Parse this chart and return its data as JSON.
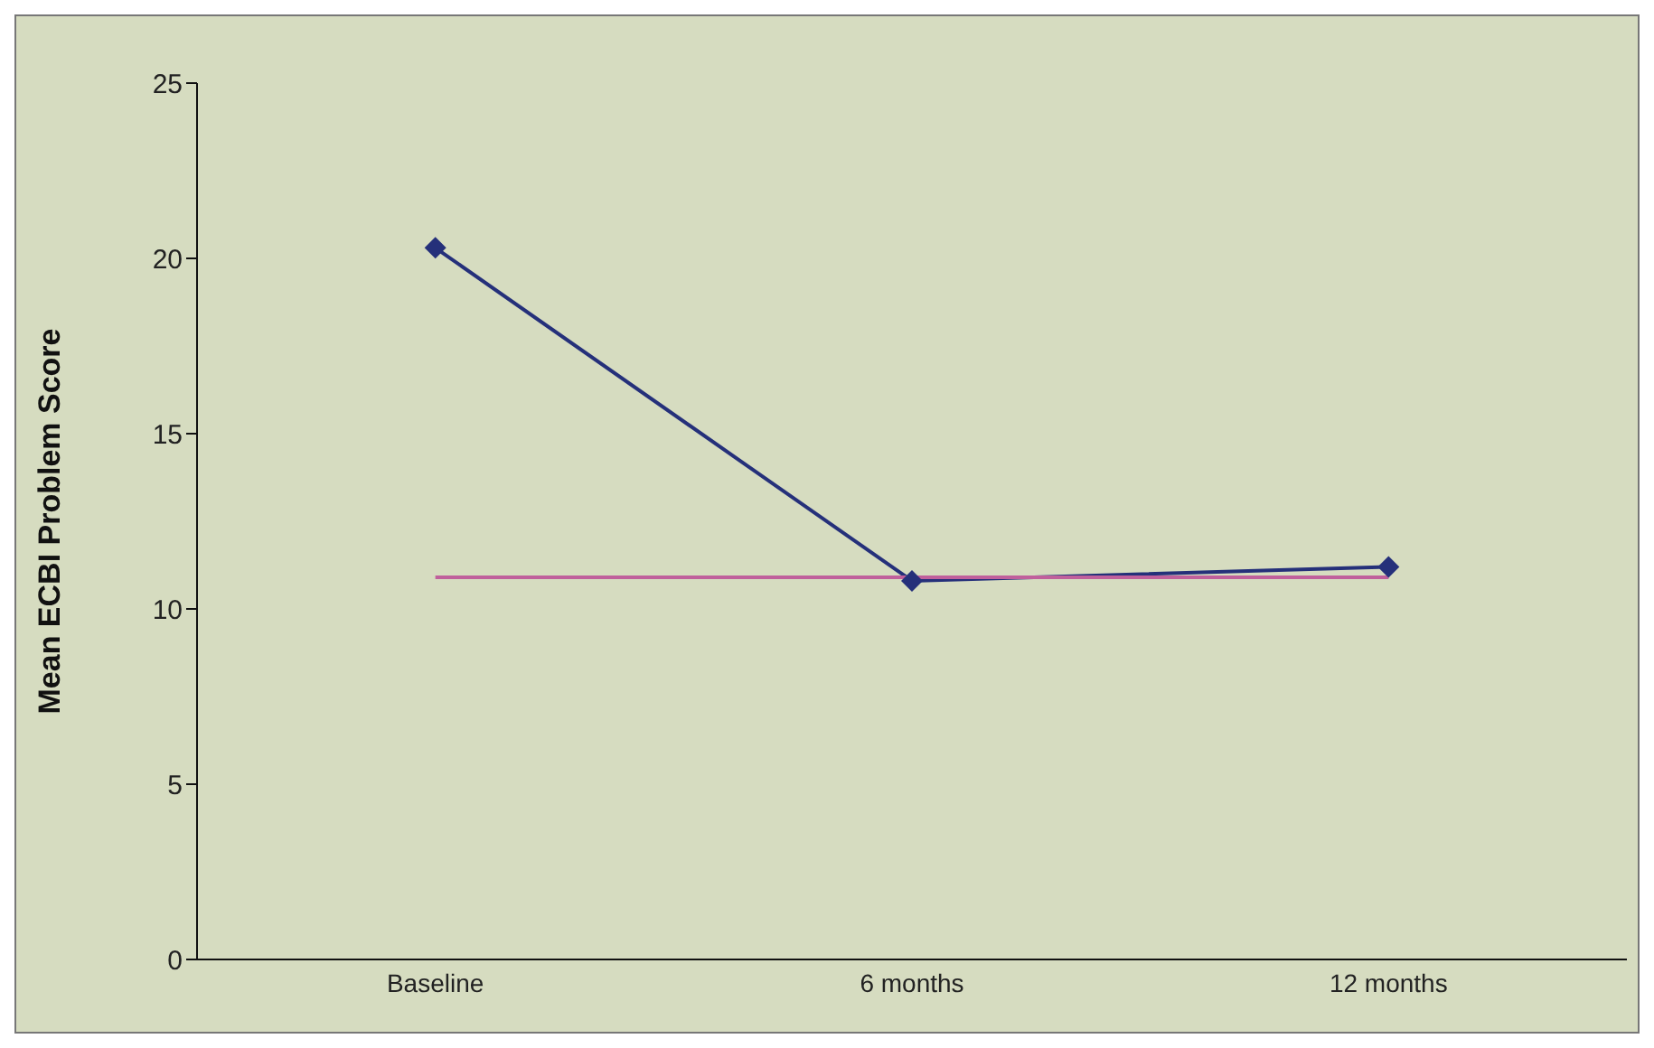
{
  "chart_data": {
    "type": "line",
    "ylabel": "Mean ECBI Problem Score",
    "categories": [
      "Baseline",
      "6 months",
      "12 months"
    ],
    "series": [
      {
        "color": "#25307a",
        "values": [
          20.3,
          10.8,
          11.2
        ],
        "marker": "diamond"
      },
      {
        "color": "#c0609c",
        "values": [
          10.9,
          10.9,
          10.9
        ],
        "marker": "none"
      }
    ],
    "ylim": [
      0,
      25
    ],
    "yticks": [
      0,
      5,
      10,
      15,
      20,
      25
    ],
    "line_style": "solid"
  }
}
